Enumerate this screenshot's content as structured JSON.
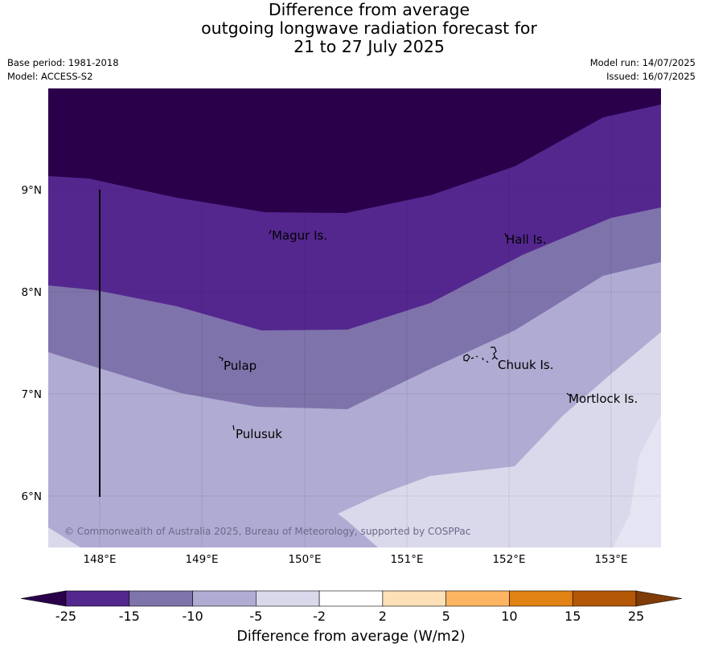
{
  "title": {
    "line1": "Difference from average",
    "line2": "outgoing longwave radiation forecast for",
    "line3": "21 to 27 July 2025"
  },
  "meta": {
    "base_period": "Base period: 1981-2018",
    "model": "Model: ACCESS-S2",
    "model_run": "Model run: 14/07/2025",
    "issued": "Issued: 16/07/2025"
  },
  "copyright": "© Commonwealth of Australia 2025, Bureau of Meteorology, supported by COSPPac",
  "map": {
    "lon_ticks": [
      "148°E",
      "149°E",
      "150°E",
      "151°E",
      "152°E",
      "153°E"
    ],
    "lat_ticks": [
      "9°N",
      "8°N",
      "7°N",
      "6°N"
    ],
    "places": [
      {
        "name": "Magur Is."
      },
      {
        "name": "Hall Is."
      },
      {
        "name": "Pulap"
      },
      {
        "name": "Chuuk Is."
      },
      {
        "name": "Mortlock Is."
      },
      {
        "name": "Pulusuk"
      }
    ]
  },
  "colorbar": {
    "label": "Difference from average (W/m2)",
    "ticks": [
      "-25",
      "-15",
      "-10",
      "-5",
      "-2",
      "2",
      "5",
      "10",
      "15",
      "25"
    ],
    "colors": [
      "#2a004b",
      "#54278f",
      "#7f73ab",
      "#b0abd2",
      "#d9d9eb",
      "#ffffff",
      "#fde0b6",
      "#fdb462",
      "#e08214",
      "#b35806",
      "#7f3b08"
    ]
  }
}
